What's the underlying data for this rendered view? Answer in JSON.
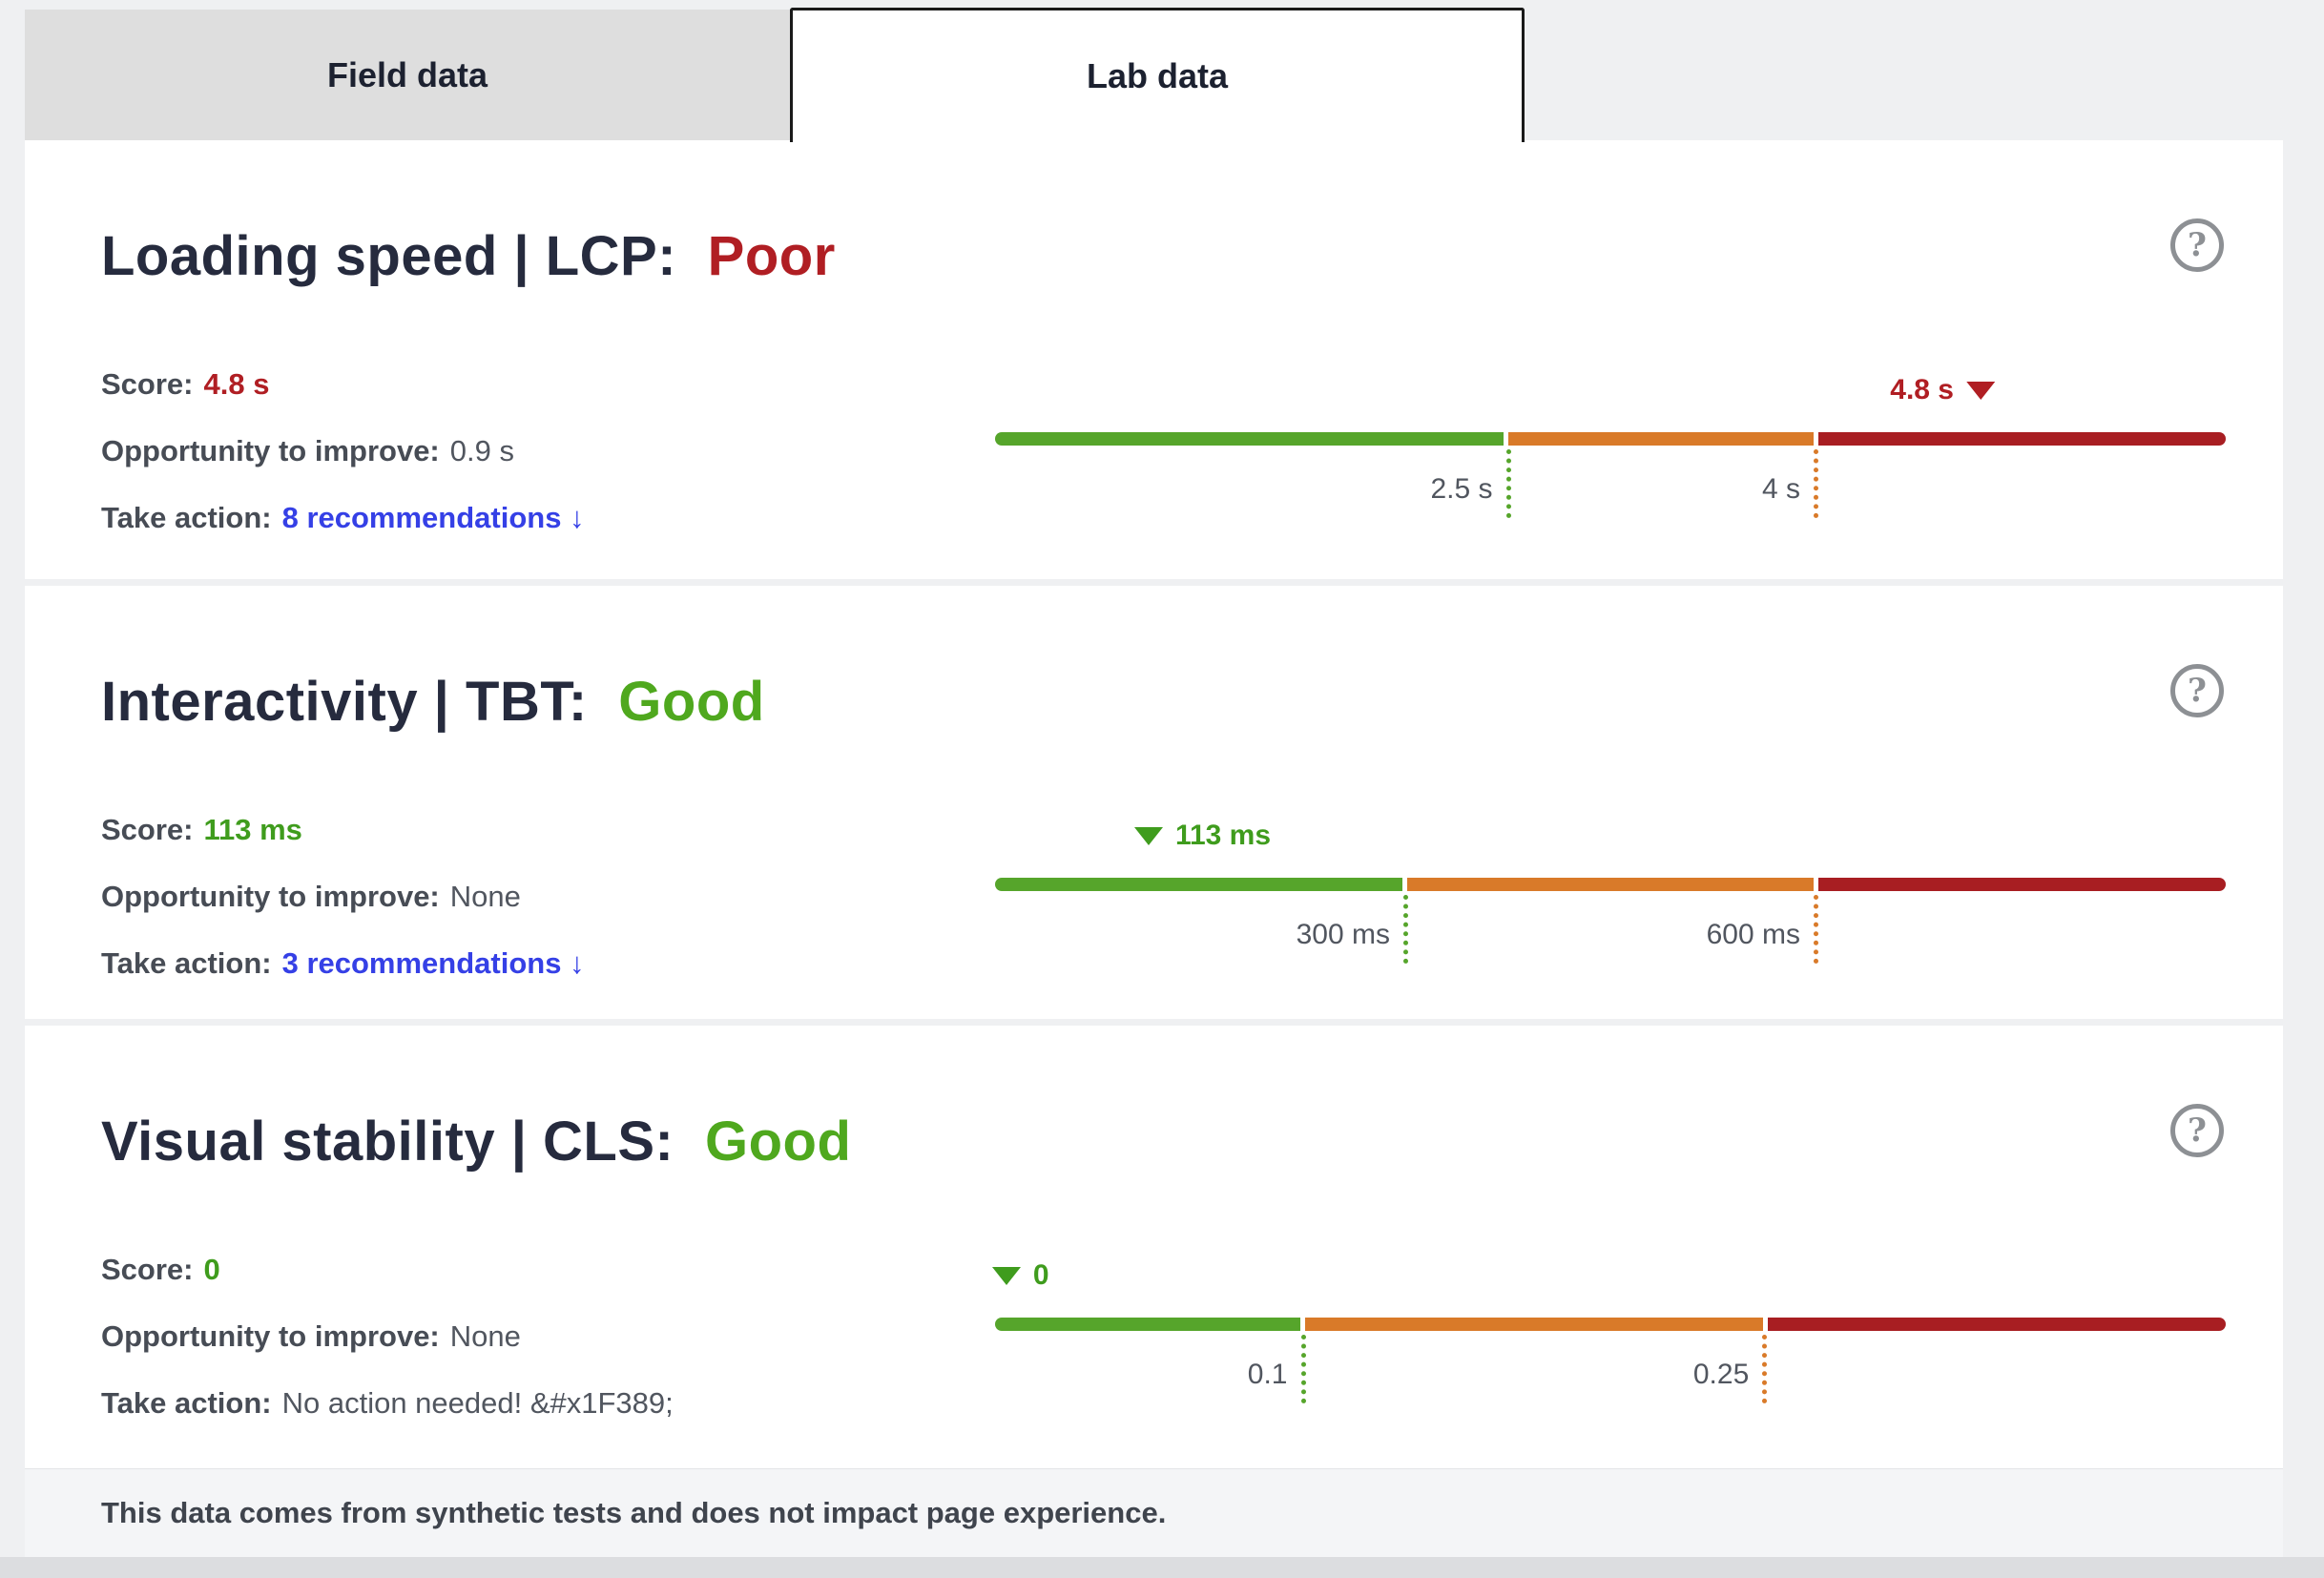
{
  "tabs": {
    "field": {
      "label": "Field data",
      "active": false
    },
    "lab": {
      "label": "Lab data",
      "active": true
    }
  },
  "icons": {
    "help_glyph": "?"
  },
  "colors": {
    "good_green": "#4fa81e",
    "poor_red": "#b01e23",
    "bar_green": "#56a52b",
    "bar_orange": "#d97a29",
    "bar_red": "#a81e22",
    "link_blue": "#3540e6"
  },
  "sections": [
    {
      "id": "lcp",
      "title": "Loading speed | LCP:",
      "status": "Poor",
      "rows": [
        {
          "label": "Score:",
          "value": "4.8 s"
        },
        {
          "label": "Opportunity to improve:",
          "value": "0.9 s"
        },
        {
          "label": "Take action:",
          "value": "8 recommendations ↓"
        }
      ]
    },
    {
      "id": "tbt",
      "title": "Interactivity | TBT:",
      "status": "Good",
      "rows": [
        {
          "label": "Score:",
          "value": "113 ms"
        },
        {
          "label": "Opportunity to improve:",
          "value": "None"
        },
        {
          "label": "Take action:",
          "value": "3 recommendations ↓"
        }
      ]
    },
    {
      "id": "cls",
      "title": "Visual stability | CLS:",
      "status": "Good",
      "rows": [
        {
          "label": "Score:",
          "value": "0"
        },
        {
          "label": "Opportunity to improve:",
          "value": "None"
        },
        {
          "label": "Take action:",
          "value": "No action needed! &#x1F389;"
        }
      ]
    }
  ],
  "chart_data": [
    {
      "type": "bar",
      "metric": "LCP",
      "unit": "s",
      "axis_range": [
        0,
        6
      ],
      "score": 4.8,
      "score_status": "poor",
      "thresholds": [
        {
          "value": 2.5,
          "label": "2.5 s"
        },
        {
          "value": 4,
          "label": "4 s"
        }
      ],
      "segments": [
        {
          "name": "good",
          "from": 0,
          "to": 2.5,
          "color": "#56a52b"
        },
        {
          "name": "needs-improvement",
          "from": 2.5,
          "to": 4,
          "color": "#d97a29"
        },
        {
          "name": "poor",
          "from": 4,
          "to": 6,
          "color": "#a81e22"
        }
      ],
      "marker": {
        "value": 4.8,
        "label": "4.8 s",
        "color": "#b01e23",
        "triangle_side": "right"
      }
    },
    {
      "type": "bar",
      "metric": "TBT",
      "unit": "ms",
      "axis_range": [
        0,
        900
      ],
      "score": 113,
      "score_status": "good",
      "thresholds": [
        {
          "value": 300,
          "label": "300 ms"
        },
        {
          "value": 600,
          "label": "600 ms"
        }
      ],
      "segments": [
        {
          "name": "good",
          "from": 0,
          "to": 300,
          "color": "#56a52b"
        },
        {
          "name": "needs-improvement",
          "from": 300,
          "to": 600,
          "color": "#d97a29"
        },
        {
          "name": "poor",
          "from": 600,
          "to": 900,
          "color": "#a81e22"
        }
      ],
      "marker": {
        "value": 113,
        "label": "113 ms",
        "color": "#3f9c1d",
        "triangle_side": "left"
      }
    },
    {
      "type": "bar",
      "metric": "CLS",
      "unit": "",
      "axis_range": [
        0,
        0.4
      ],
      "score": 0,
      "score_status": "good",
      "thresholds": [
        {
          "value": 0.1,
          "label": "0.1"
        },
        {
          "value": 0.25,
          "label": "0.25"
        }
      ],
      "segments": [
        {
          "name": "good",
          "from": 0,
          "to": 0.1,
          "color": "#56a52b"
        },
        {
          "name": "needs-improvement",
          "from": 0.1,
          "to": 0.25,
          "color": "#d97a29"
        },
        {
          "name": "poor",
          "from": 0.25,
          "to": 0.4,
          "color": "#a81e22"
        }
      ],
      "marker": {
        "value": 0.004,
        "label": "0",
        "color": "#3f9c1d",
        "triangle_side": "left"
      }
    }
  ],
  "footer": {
    "text": "This data comes from synthetic tests and does not impact page experience."
  }
}
